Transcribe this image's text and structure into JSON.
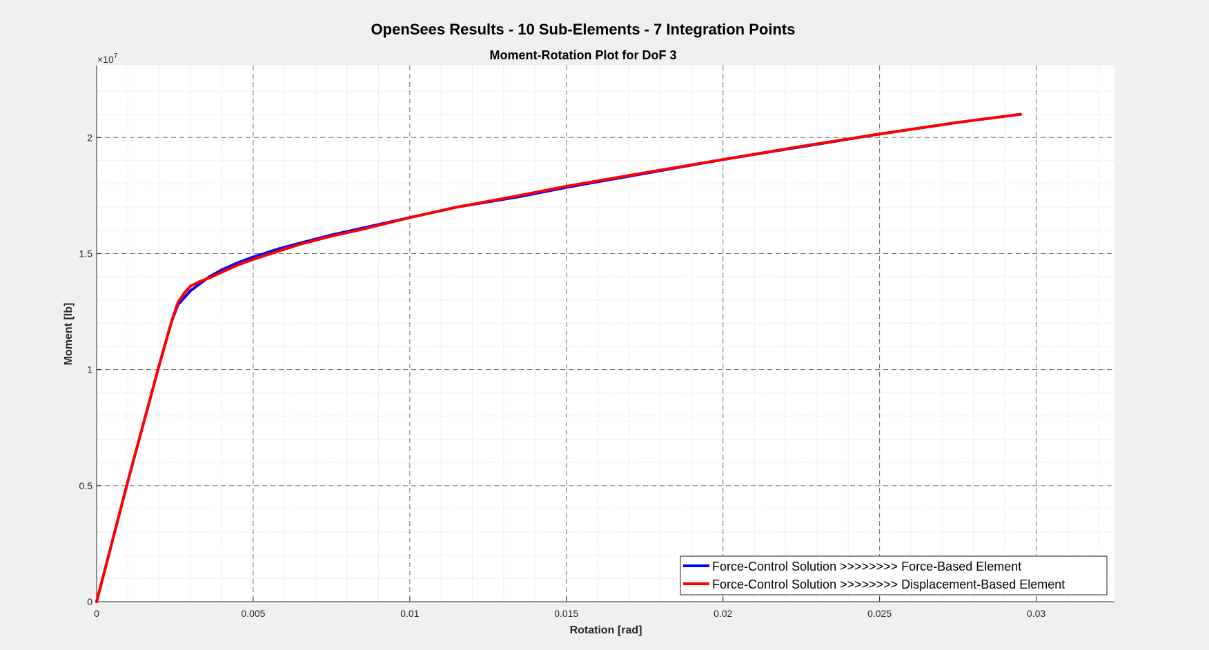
{
  "figure": {
    "suptitle": "OpenSees Results - 10 Sub-Elements - 7 Integration Points"
  },
  "chart_data": {
    "type": "line",
    "title": "Moment-Rotation Plot for DoF 3",
    "xlabel": "Rotation [rad]",
    "ylabel": "Moment [lb]",
    "y_exponent_label": "×10",
    "y_exponent_power": "7",
    "xlim": [
      0,
      0.0325
    ],
    "ylim": [
      0,
      2.31
    ],
    "y_scale_note": "y values in units of 10^7 lb",
    "xticks": [
      0,
      0.005,
      0.01,
      0.015,
      0.02,
      0.025,
      0.03
    ],
    "xtick_labels": [
      "0",
      "0.005",
      "0.01",
      "0.015",
      "0.02",
      "0.025",
      "0.03"
    ],
    "yticks": [
      0,
      0.5,
      1,
      1.5,
      2
    ],
    "ytick_labels": [
      "0",
      "0.5",
      "1",
      "1.5",
      "2"
    ],
    "grid": true,
    "minor_grid": true,
    "legend_position": "bottom-right",
    "series": [
      {
        "name": "Force-Control Solution >>>>>>>> Force-Based Element",
        "color": "#0000ff",
        "x": [
          0,
          0.0005,
          0.001,
          0.0015,
          0.002,
          0.0024,
          0.0026,
          0.0028,
          0.003,
          0.0033,
          0.0036,
          0.004,
          0.0045,
          0.005,
          0.0058,
          0.0065,
          0.0075,
          0.0085,
          0.01,
          0.0115,
          0.0135,
          0.015,
          0.0175,
          0.02,
          0.0225,
          0.025,
          0.0275,
          0.0295
        ],
        "y": [
          0,
          0.26,
          0.52,
          0.77,
          1.02,
          1.21,
          1.28,
          1.31,
          1.34,
          1.37,
          1.4,
          1.43,
          1.46,
          1.485,
          1.52,
          1.545,
          1.58,
          1.61,
          1.655,
          1.7,
          1.745,
          1.785,
          1.845,
          1.905,
          1.96,
          2.015,
          2.065,
          2.1
        ]
      },
      {
        "name": "Force-Control Solution >>>>>>>> Displacement-Based Element",
        "color": "#ff0000",
        "x": [
          0,
          0.0005,
          0.001,
          0.0015,
          0.002,
          0.0024,
          0.0026,
          0.0028,
          0.003,
          0.0033,
          0.0036,
          0.004,
          0.0045,
          0.005,
          0.0058,
          0.0065,
          0.0075,
          0.0085,
          0.01,
          0.0115,
          0.0135,
          0.015,
          0.0175,
          0.02,
          0.0225,
          0.025,
          0.0275,
          0.0295
        ],
        "y": [
          0,
          0.26,
          0.52,
          0.77,
          1.02,
          1.21,
          1.29,
          1.33,
          1.36,
          1.38,
          1.395,
          1.42,
          1.45,
          1.475,
          1.51,
          1.54,
          1.575,
          1.605,
          1.655,
          1.7,
          1.75,
          1.79,
          1.848,
          1.905,
          1.962,
          2.015,
          2.065,
          2.1
        ]
      }
    ]
  }
}
